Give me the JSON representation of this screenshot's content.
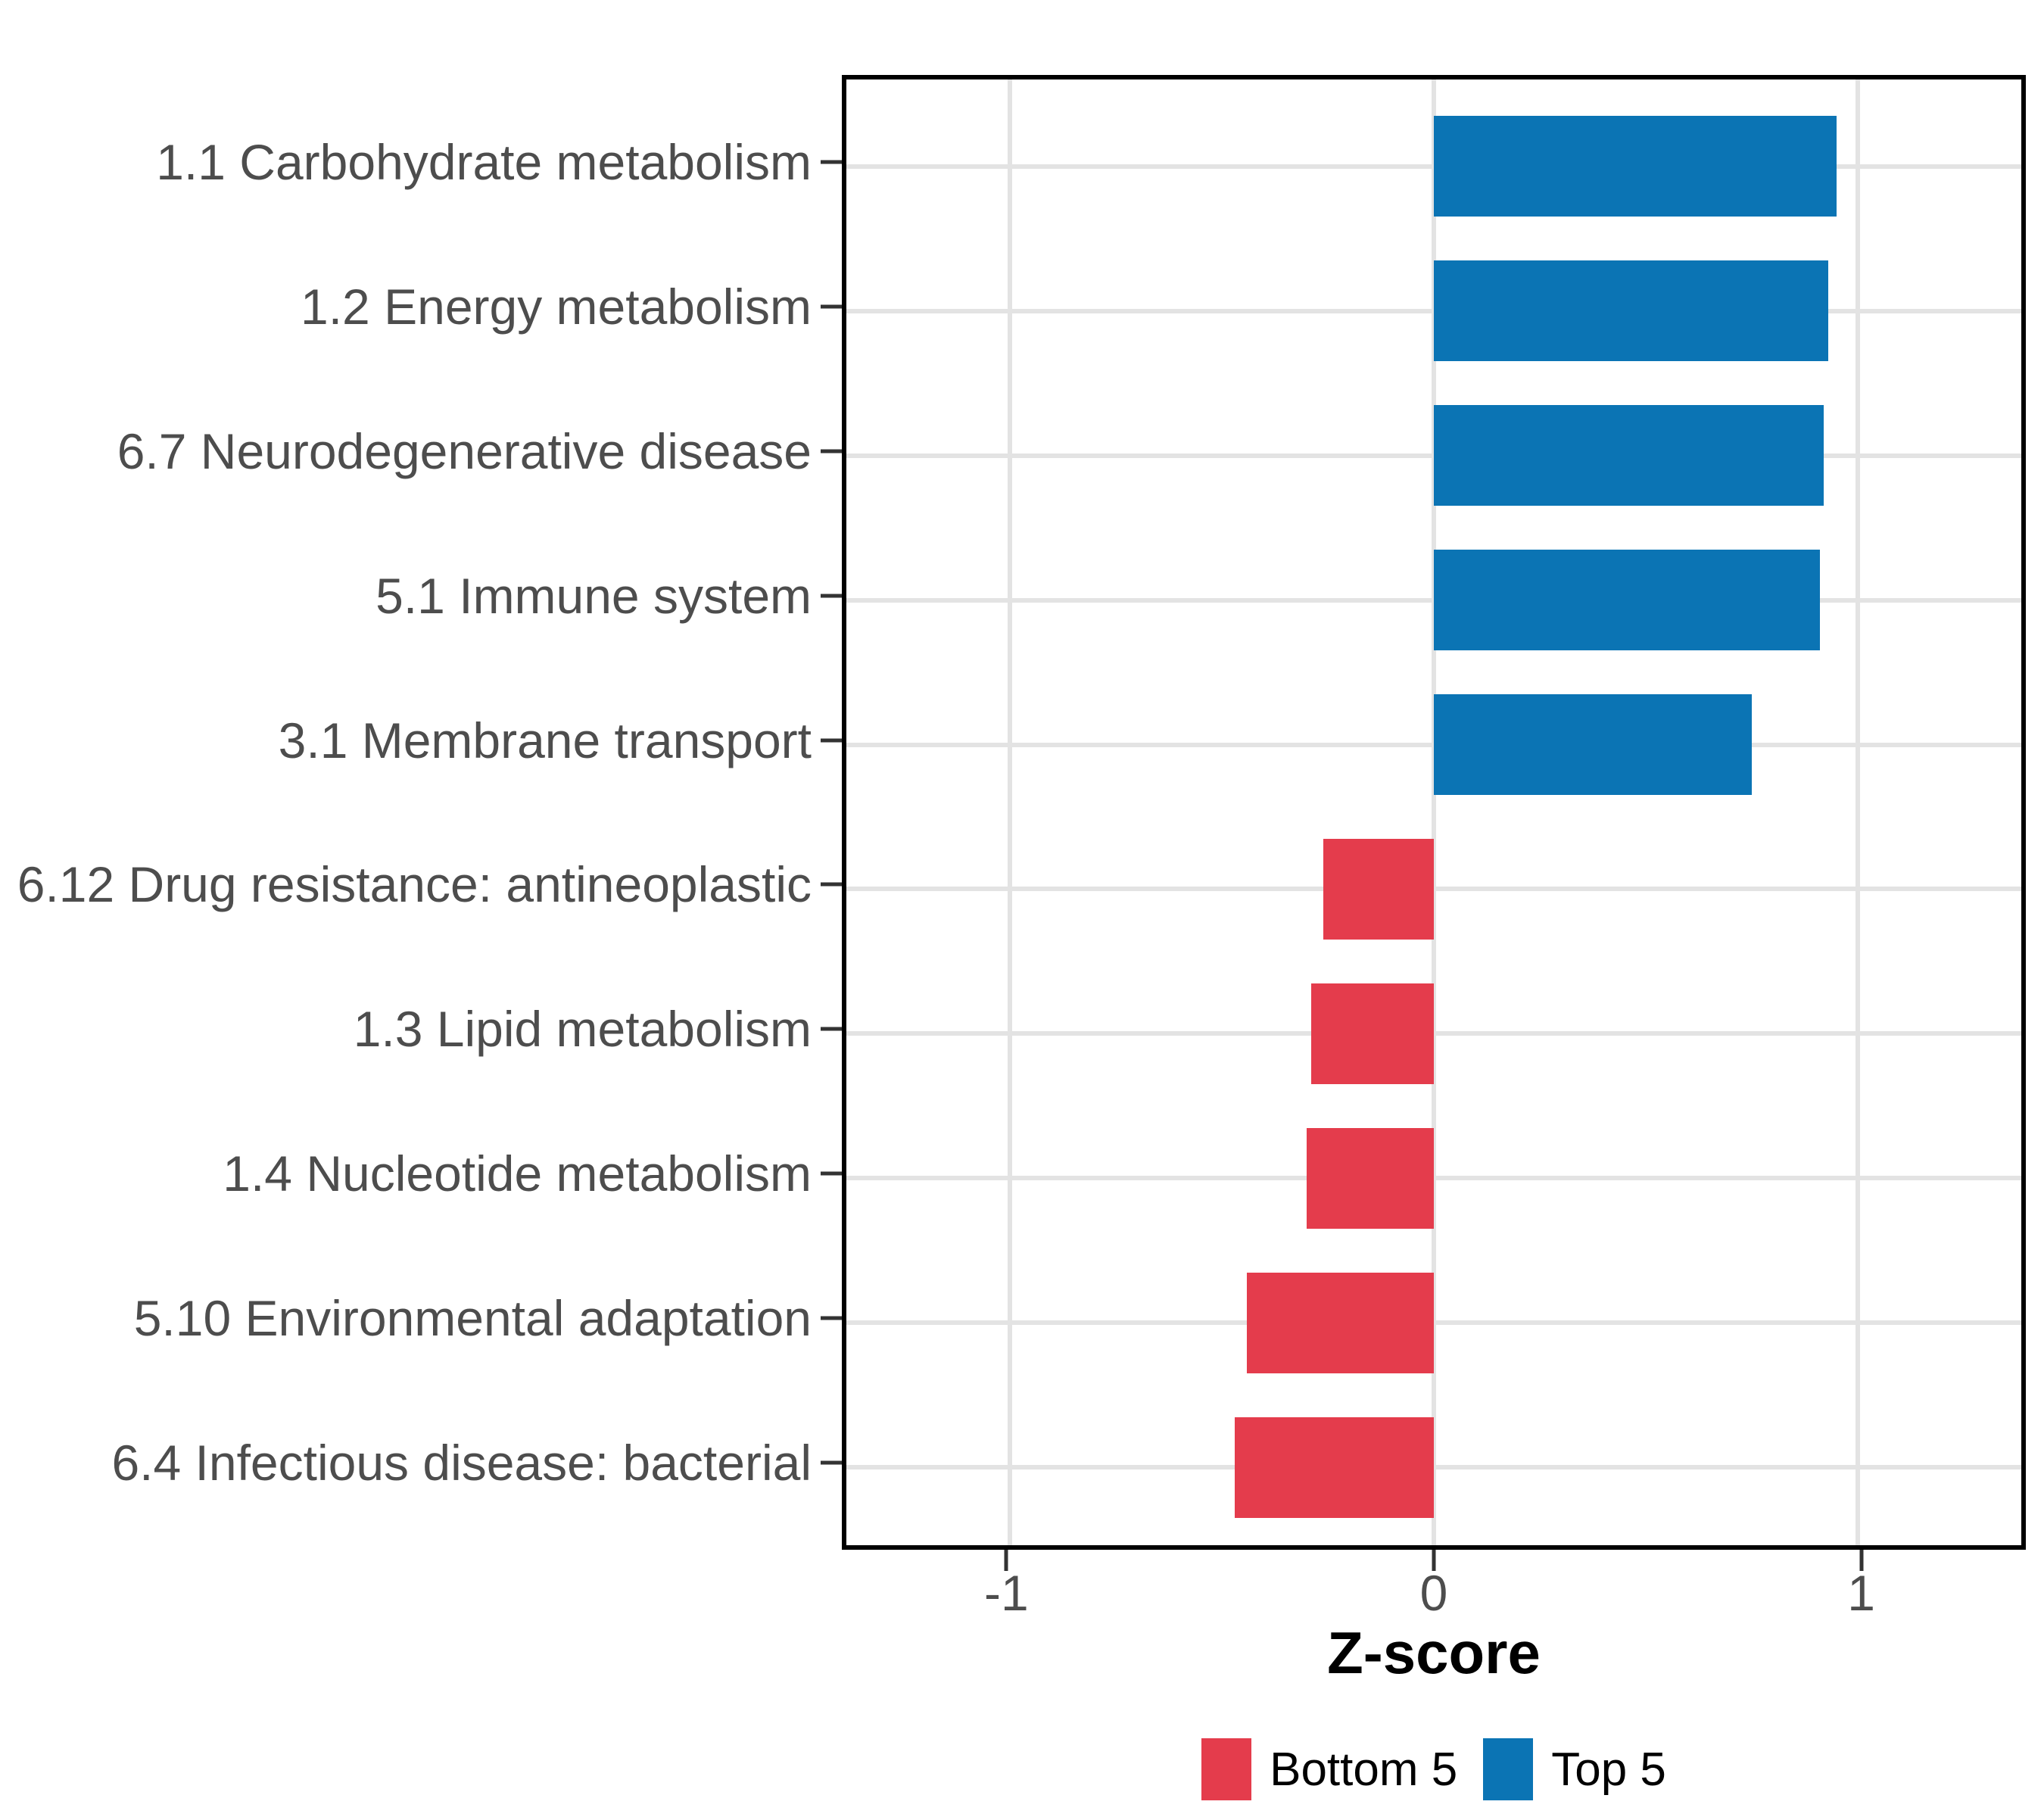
{
  "chart_data": {
    "type": "bar",
    "orientation": "horizontal",
    "title": "",
    "xlabel": "Z-score",
    "ylabel": "",
    "xlim": [
      -1.385,
      1.385
    ],
    "x_ticks": [
      {
        "value": -1,
        "label": "-1"
      },
      {
        "value": 0,
        "label": "0"
      },
      {
        "value": 1,
        "label": "1"
      }
    ],
    "grid": true,
    "bar_width_fraction": 0.7,
    "categories_note": "listed top to bottom as displayed",
    "rows": [
      {
        "label": "1.1 Carbohydrate metabolism",
        "value": 0.95,
        "group": "Top 5"
      },
      {
        "label": "1.2 Energy metabolism",
        "value": 0.93,
        "group": "Top 5"
      },
      {
        "label": "6.7 Neurodegenerative disease",
        "value": 0.92,
        "group": "Top 5"
      },
      {
        "label": "5.1 Immune system",
        "value": 0.91,
        "group": "Top 5"
      },
      {
        "label": "3.1 Membrane transport",
        "value": 0.75,
        "group": "Top 5"
      },
      {
        "label": "6.12 Drug resistance: antineoplastic",
        "value": -0.26,
        "group": "Bottom 5"
      },
      {
        "label": "1.3 Lipid metabolism",
        "value": -0.29,
        "group": "Bottom 5"
      },
      {
        "label": "1.4 Nucleotide metabolism",
        "value": -0.3,
        "group": "Bottom 5"
      },
      {
        "label": "5.10 Environmental adaptation",
        "value": -0.44,
        "group": "Bottom 5"
      },
      {
        "label": "6.4 Infectious disease: bacterial",
        "value": -0.47,
        "group": "Bottom 5"
      }
    ],
    "colors": {
      "Bottom 5": "#E43C4C",
      "Top 5": "#0B74B4"
    },
    "legend": {
      "position": "bottom",
      "entries": [
        {
          "label": "Bottom 5",
          "color": "#E43C4C"
        },
        {
          "label": "Top 5",
          "color": "#0B74B4"
        }
      ]
    },
    "style": {
      "panel_border": "#000000",
      "gridline": "#E3E3E3",
      "axis_text": "#4D4D4D",
      "tick": "#333333",
      "background": "#FFFFFF"
    }
  }
}
